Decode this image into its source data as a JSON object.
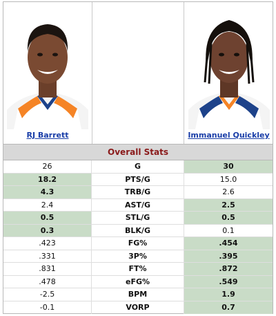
{
  "players": {
    "left": {
      "name": "RJ Barrett"
    },
    "right": {
      "name": "Immanuel Quickley"
    }
  },
  "section_title": "Overall Stats",
  "stats": [
    {
      "label": "G",
      "left": "26",
      "right": "30",
      "winner": "right"
    },
    {
      "label": "PTS/G",
      "left": "18.2",
      "right": "15.0",
      "winner": "left"
    },
    {
      "label": "TRB/G",
      "left": "4.3",
      "right": "2.6",
      "winner": "left"
    },
    {
      "label": "AST/G",
      "left": "2.4",
      "right": "2.5",
      "winner": "right"
    },
    {
      "label": "STL/G",
      "left": "0.5",
      "right": "0.5",
      "winner": "both"
    },
    {
      "label": "BLK/G",
      "left": "0.3",
      "right": "0.1",
      "winner": "left"
    },
    {
      "label": "FG%",
      "left": ".423",
      "right": ".454",
      "winner": "right"
    },
    {
      "label": "3P%",
      "left": ".331",
      "right": ".395",
      "winner": "right"
    },
    {
      "label": "FT%",
      "left": ".831",
      "right": ".872",
      "winner": "right"
    },
    {
      "label": "eFG%",
      "left": ".478",
      "right": ".549",
      "winner": "right"
    },
    {
      "label": "BPM",
      "left": "-2.5",
      "right": "1.9",
      "winner": "right"
    },
    {
      "label": "VORP",
      "left": "-0.1",
      "right": "0.7",
      "winner": "right"
    }
  ]
}
